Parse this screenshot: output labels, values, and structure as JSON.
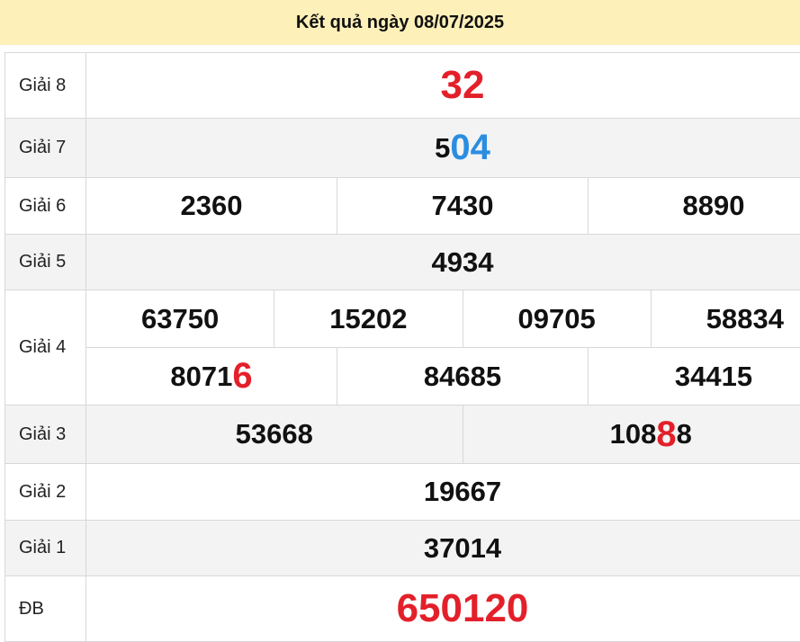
{
  "header": {
    "title": "Kết quả ngày 08/07/2025"
  },
  "colors": {
    "header_bg": "#fdf0b8",
    "highlight_red": "#e3202a",
    "highlight_blue": "#2b8de0"
  },
  "prizes": {
    "g8": {
      "label": "Giải 8",
      "numbers": [
        {
          "plain": "",
          "hl": "32",
          "hl_color": "red"
        }
      ]
    },
    "g7": {
      "label": "Giải 7",
      "numbers": [
        {
          "plain": "5",
          "hl": "04",
          "hl_color": "blue"
        }
      ]
    },
    "g6": {
      "label": "Giải 6",
      "numbers": [
        "2360",
        "7430",
        "8890"
      ]
    },
    "g5": {
      "label": "Giải 5",
      "numbers": [
        "4934"
      ]
    },
    "g4": {
      "label": "Giải 4",
      "numbers": [
        "63750",
        "15202",
        "09705",
        "58834",
        {
          "plain": "8071",
          "hl": "6",
          "hl_color": "red"
        },
        "84685",
        "34415"
      ]
    },
    "g3": {
      "label": "Giải 3",
      "numbers": [
        "53668",
        {
          "plain": "108",
          "hl": "8",
          "tail": "8",
          "hl_color": "red"
        }
      ]
    },
    "g2": {
      "label": "Giải 2",
      "numbers": [
        "19667"
      ]
    },
    "g1": {
      "label": "Giải 1",
      "numbers": [
        "37014"
      ]
    },
    "db": {
      "label": "ĐB",
      "numbers": [
        {
          "plain": "",
          "hl": "650120",
          "hl_color": "red"
        }
      ]
    }
  }
}
